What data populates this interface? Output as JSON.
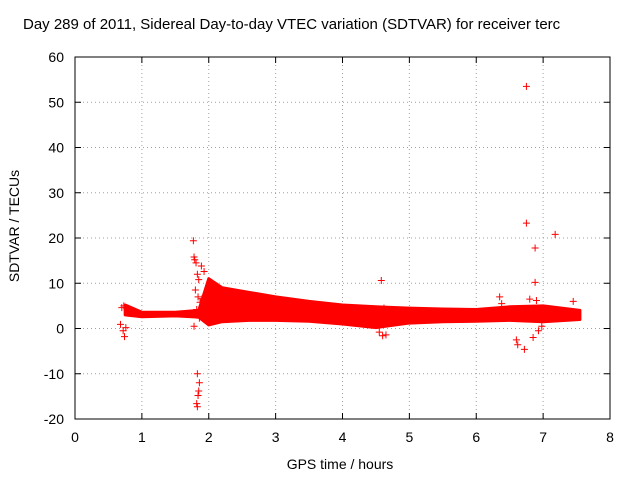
{
  "chart_data": {
    "type": "scatter",
    "title": "Day 289 of 2011, Sidereal Day-to-day VTEC variation (SDTVAR) for receiver terc",
    "xlabel": "GPS time / hours",
    "ylabel": "SDTVAR / TECUs",
    "xlim": [
      0,
      8
    ],
    "ylim": [
      -20,
      60
    ],
    "xticks": [
      "0",
      "1",
      "2",
      "3",
      "4",
      "5",
      "6",
      "7",
      "8"
    ],
    "yticks": [
      "-20",
      "-10",
      "0",
      "10",
      "20",
      "30",
      "40",
      "50",
      "60"
    ],
    "grid": true,
    "marker": "+",
    "color": "#ff0000",
    "band": {
      "description": "dense continuous band of points",
      "upper": [
        [
          0.75,
          5.2
        ],
        [
          1.0,
          3.6
        ],
        [
          1.5,
          3.6
        ],
        [
          1.85,
          4.0
        ],
        [
          2.0,
          11.0
        ],
        [
          2.2,
          9.0
        ],
        [
          2.6,
          8.0
        ],
        [
          3.0,
          7.0
        ],
        [
          3.5,
          6.0
        ],
        [
          4.0,
          5.2
        ],
        [
          4.5,
          4.8
        ],
        [
          5.0,
          4.5
        ],
        [
          5.5,
          4.3
        ],
        [
          6.0,
          4.2
        ],
        [
          6.5,
          4.8
        ],
        [
          7.0,
          5.0
        ],
        [
          7.55,
          4.0
        ]
      ],
      "lower": [
        [
          0.75,
          3.0
        ],
        [
          1.0,
          2.6
        ],
        [
          1.5,
          2.8
        ],
        [
          1.85,
          2.5
        ],
        [
          2.0,
          0.8
        ],
        [
          2.2,
          1.5
        ],
        [
          2.6,
          1.8
        ],
        [
          3.0,
          1.8
        ],
        [
          3.5,
          1.6
        ],
        [
          4.0,
          1.0
        ],
        [
          4.5,
          0.2
        ],
        [
          5.0,
          1.2
        ],
        [
          5.5,
          1.5
        ],
        [
          6.0,
          1.6
        ],
        [
          6.5,
          1.8
        ],
        [
          7.0,
          1.5
        ],
        [
          7.55,
          2.0
        ]
      ]
    },
    "points": [
      [
        6.75,
        53.5
      ],
      [
        6.75,
        23.3
      ],
      [
        7.18,
        20.8
      ],
      [
        6.88,
        17.8
      ],
      [
        1.77,
        19.4
      ],
      [
        1.78,
        15.8
      ],
      [
        1.79,
        15.2
      ],
      [
        1.81,
        14.5
      ],
      [
        1.83,
        12.0
      ],
      [
        1.85,
        10.8
      ],
      [
        1.89,
        13.8
      ],
      [
        1.93,
        12.6
      ],
      [
        1.8,
        8.5
      ],
      [
        1.84,
        7.0
      ],
      [
        1.87,
        5.8
      ],
      [
        1.9,
        6.6
      ],
      [
        1.82,
        4.2
      ],
      [
        1.86,
        2.3
      ],
      [
        1.78,
        0.5
      ],
      [
        1.83,
        -10.0
      ],
      [
        1.82,
        -16.6
      ],
      [
        1.83,
        -17.3
      ],
      [
        1.86,
        -12.0
      ],
      [
        1.85,
        -13.8
      ],
      [
        1.84,
        -14.8
      ],
      [
        0.68,
        0.9
      ],
      [
        0.72,
        -0.5
      ],
      [
        0.74,
        -1.8
      ],
      [
        0.76,
        0.2
      ],
      [
        0.7,
        4.6
      ],
      [
        0.73,
        5.0
      ],
      [
        4.58,
        10.6
      ],
      [
        4.55,
        -0.8
      ],
      [
        4.6,
        -1.6
      ],
      [
        4.65,
        -1.4
      ],
      [
        4.62,
        4.5
      ],
      [
        6.35,
        7.0
      ],
      [
        6.38,
        5.5
      ],
      [
        6.6,
        -2.5
      ],
      [
        6.62,
        -3.6
      ],
      [
        6.72,
        -4.6
      ],
      [
        6.88,
        10.2
      ],
      [
        6.9,
        6.2
      ],
      [
        6.8,
        6.5
      ],
      [
        6.93,
        -0.5
      ],
      [
        6.98,
        0.5
      ],
      [
        6.85,
        -2.0
      ],
      [
        7.45,
        6.0
      ]
    ]
  }
}
